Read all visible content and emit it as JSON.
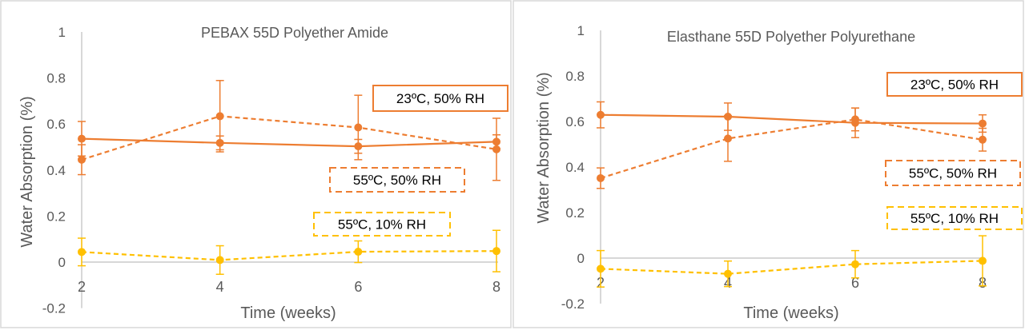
{
  "colors": {
    "orange": "#ED7D31",
    "yellow": "#FFC000",
    "axis": "#BFBFBF",
    "text": "#595959"
  },
  "chart_data": [
    {
      "type": "line",
      "title": "PEBAX 55D Polyether Amide",
      "xlabel": "Time (weeks)",
      "ylabel": "Water Absorption (%)",
      "x": [
        2,
        4,
        6,
        8
      ],
      "xticks": [
        "2",
        "4",
        "6",
        "8"
      ],
      "ylim": [
        -0.2,
        1
      ],
      "yticks": [
        "-0.2",
        "0",
        "0.2",
        "0.4",
        "0.6",
        "0.8",
        "1"
      ],
      "grid": false,
      "series": [
        {
          "name": "23ºC, 50% RH",
          "style": "solid",
          "color": "#ED7D31",
          "values": [
            0.536,
            0.518,
            0.503,
            0.523
          ],
          "errors": [
            0.075,
            0.03,
            0.03,
            0.03
          ]
        },
        {
          "name": "55ºC, 50% RH",
          "style": "dashed",
          "color": "#ED7D31",
          "values": [
            0.445,
            0.634,
            0.585,
            0.49
          ],
          "errors": [
            0.065,
            0.155,
            0.14,
            0.135
          ]
        },
        {
          "name": "55ºC, 10% RH",
          "style": "dashed",
          "color": "#FFC000",
          "values": [
            0.044,
            0.009,
            0.045,
            0.048
          ],
          "errors": [
            0.06,
            0.062,
            0.047,
            0.09
          ]
        }
      ]
    },
    {
      "type": "line",
      "title": "Elasthane 55D Polyether Polyurethane",
      "xlabel": "Time (weeks)",
      "ylabel": "Water Absorption (%)",
      "x": [
        2,
        4,
        6,
        8
      ],
      "xticks": [
        "2",
        "4",
        "6",
        "8"
      ],
      "ylim": [
        -0.2,
        1
      ],
      "yticks": [
        "-0.2",
        "0",
        "0.2",
        "0.4",
        "0.6",
        "0.8",
        "1"
      ],
      "grid": false,
      "series": [
        {
          "name": "23ºC, 50% RH",
          "style": "solid",
          "color": "#ED7D31",
          "values": [
            0.629,
            0.621,
            0.594,
            0.591
          ],
          "errors": [
            0.057,
            0.06,
            0.065,
            0.038
          ]
        },
        {
          "name": "55ºC, 50% RH",
          "style": "dashed",
          "color": "#ED7D31",
          "values": [
            0.351,
            0.525,
            0.609,
            0.52
          ],
          "errors": [
            0.045,
            0.1,
            0.05,
            0.05
          ]
        },
        {
          "name": "55ºC, 10% RH",
          "style": "dashed",
          "color": "#FFC000",
          "values": [
            -0.047,
            -0.069,
            -0.027,
            -0.012
          ],
          "errors": [
            0.08,
            0.056,
            0.06,
            0.11
          ]
        }
      ]
    }
  ]
}
